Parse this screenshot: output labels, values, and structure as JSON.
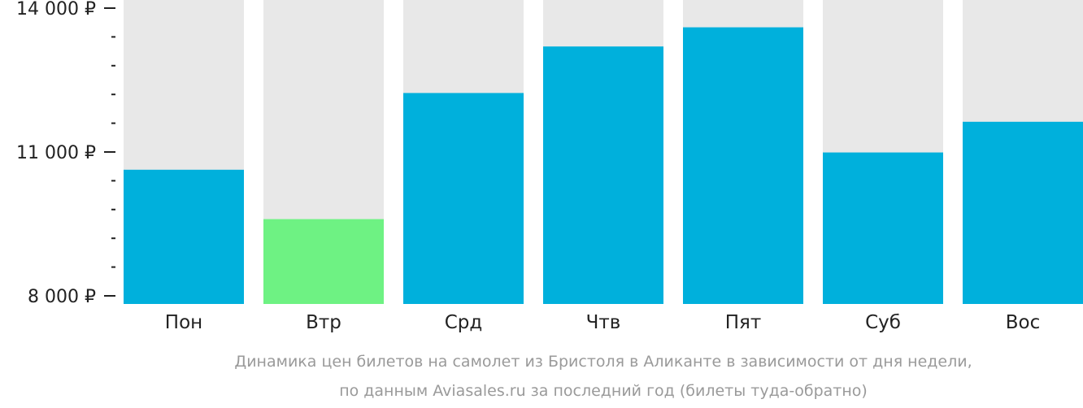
{
  "chart_data": {
    "type": "bar",
    "categories": [
      "Пон",
      "Втр",
      "Срд",
      "Чтв",
      "Пят",
      "Суб",
      "Вос"
    ],
    "values": [
      10630,
      9600,
      12230,
      13200,
      13600,
      10990,
      11630
    ],
    "highlight_index": 1,
    "ylim": [
      8000,
      14000
    ],
    "y_ticks": [
      {
        "value": 8000,
        "label": "8 000 ₽"
      },
      {
        "value": 11000,
        "label": "11 000 ₽"
      },
      {
        "value": 14000,
        "label": "14 000 ₽"
      }
    ],
    "minor_tick_step": 600,
    "caption_lines": [
      "Динамика цен билетов на самолет из Бристоля в Аликанте в зависимости от дня недели,",
      "по данным Aviasales.ru за последний год (билеты туда-обратно)"
    ],
    "colors": {
      "bar": "#00b0dc",
      "highlight": "#6ef283",
      "track": "#e8e8e8",
      "axis": "#222222",
      "caption": "#9a9a9a"
    }
  }
}
